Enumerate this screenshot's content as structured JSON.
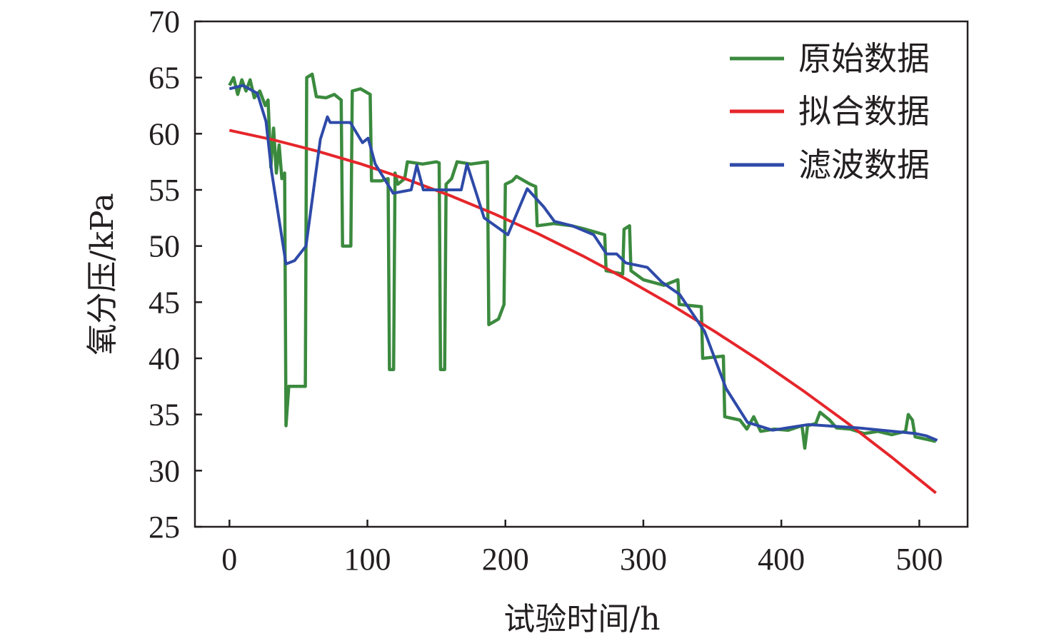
{
  "chart_data": {
    "type": "line",
    "title": "",
    "xlabel": "试验时间/h",
    "ylabel": "氧分压/kPa",
    "xlim": [
      -25,
      535
    ],
    "ylim": [
      25,
      70
    ],
    "xticks": [
      0,
      100,
      200,
      300,
      400,
      500
    ],
    "yticks": [
      25,
      30,
      35,
      40,
      45,
      50,
      55,
      60,
      65,
      70
    ],
    "grid": false,
    "legend_position": "top-right",
    "series": [
      {
        "name": "原始数据",
        "color": "#3b8a3e",
        "points": [
          [
            0,
            64.3
          ],
          [
            3,
            65
          ],
          [
            6,
            63.5
          ],
          [
            9,
            64.8
          ],
          [
            12,
            63.8
          ],
          [
            15,
            64.8
          ],
          [
            18,
            63.2
          ],
          [
            22,
            63.8
          ],
          [
            26,
            62.5
          ],
          [
            28,
            63
          ],
          [
            30,
            57
          ],
          [
            32,
            60.5
          ],
          [
            34,
            56.5
          ],
          [
            36,
            59
          ],
          [
            38,
            56
          ],
          [
            40,
            56.5
          ],
          [
            41,
            34
          ],
          [
            43,
            37.5
          ],
          [
            55,
            37.5
          ],
          [
            56,
            65
          ],
          [
            60,
            65.3
          ],
          [
            63,
            63.3
          ],
          [
            70,
            63.2
          ],
          [
            76,
            63.5
          ],
          [
            81,
            63
          ],
          [
            82,
            50
          ],
          [
            88,
            50
          ],
          [
            89,
            63.8
          ],
          [
            95,
            64
          ],
          [
            102,
            63.5
          ],
          [
            103,
            55.8
          ],
          [
            110,
            55.8
          ],
          [
            115,
            56
          ],
          [
            116,
            39
          ],
          [
            119,
            39
          ],
          [
            120,
            56.5
          ],
          [
            122,
            55.5
          ],
          [
            127,
            56
          ],
          [
            129,
            57.5
          ],
          [
            140,
            57.3
          ],
          [
            150,
            57.5
          ],
          [
            152,
            57.4
          ],
          [
            153,
            39
          ],
          [
            156,
            39
          ],
          [
            157,
            55.5
          ],
          [
            161,
            56
          ],
          [
            165,
            57.5
          ],
          [
            175,
            57.3
          ],
          [
            187,
            57.5
          ],
          [
            188,
            43
          ],
          [
            195,
            43.5
          ],
          [
            199,
            44.8
          ],
          [
            200,
            55.5
          ],
          [
            205,
            55.8
          ],
          [
            208,
            56.2
          ],
          [
            218,
            55.5
          ],
          [
            222,
            55.3
          ],
          [
            223,
            51.8
          ],
          [
            235,
            52
          ],
          [
            248,
            51.8
          ],
          [
            258,
            51.5
          ],
          [
            272,
            51
          ],
          [
            273,
            47.8
          ],
          [
            285,
            47.5
          ],
          [
            286,
            51.5
          ],
          [
            290,
            51.8
          ],
          [
            291,
            47.8
          ],
          [
            300,
            47
          ],
          [
            315,
            46.5
          ],
          [
            325,
            47
          ],
          [
            326,
            44.8
          ],
          [
            342,
            44.6
          ],
          [
            343,
            40
          ],
          [
            358,
            40.2
          ],
          [
            359,
            34.8
          ],
          [
            370,
            34.5
          ],
          [
            375,
            33.7
          ],
          [
            380,
            34.8
          ],
          [
            385,
            33.5
          ],
          [
            395,
            33.7
          ],
          [
            405,
            33.6
          ],
          [
            415,
            34
          ],
          [
            417,
            32
          ],
          [
            419,
            34
          ],
          [
            425,
            34.2
          ],
          [
            428,
            35.2
          ],
          [
            435,
            34.5
          ],
          [
            440,
            33.8
          ],
          [
            450,
            33.7
          ],
          [
            460,
            33.3
          ],
          [
            470,
            33.5
          ],
          [
            480,
            33.2
          ],
          [
            490,
            33.5
          ],
          [
            492,
            35
          ],
          [
            495,
            34.5
          ],
          [
            497,
            33
          ],
          [
            505,
            32.8
          ],
          [
            512,
            32.6
          ]
        ]
      },
      {
        "name": "拟合数据",
        "color": "#e5262b",
        "points": [
          [
            0,
            60.3
          ],
          [
            32,
            59.45
          ],
          [
            64,
            58.44
          ],
          [
            96,
            57.28
          ],
          [
            128,
            55.96
          ],
          [
            160,
            54.49
          ],
          [
            192,
            52.86
          ],
          [
            224,
            51.08
          ],
          [
            256,
            49.13
          ],
          [
            288,
            47.03
          ],
          [
            320,
            44.78
          ],
          [
            352,
            42.37
          ],
          [
            384,
            39.82
          ],
          [
            416,
            37.1
          ],
          [
            448,
            34.23
          ],
          [
            480,
            31.2
          ],
          [
            512,
            28.01
          ]
        ]
      },
      {
        "name": "滤波数据",
        "color": "#2e4aa8",
        "points": [
          [
            0,
            64
          ],
          [
            9.9,
            64.3
          ],
          [
            20.2,
            63.6
          ],
          [
            26.5,
            61.1
          ],
          [
            30.6,
            56.6
          ],
          [
            41,
            48.4
          ],
          [
            47.2,
            48.7
          ],
          [
            55.5,
            50
          ],
          [
            65.9,
            59.5
          ],
          [
            71,
            61.5
          ],
          [
            73,
            61
          ],
          [
            87.6,
            61
          ],
          [
            96.4,
            59.2
          ],
          [
            100.5,
            59.6
          ],
          [
            105.7,
            57.3
          ],
          [
            118.7,
            54.7
          ],
          [
            131.7,
            55
          ],
          [
            135.8,
            57.2
          ],
          [
            140.5,
            55
          ],
          [
            168,
            55
          ],
          [
            172.2,
            57.3
          ],
          [
            184.6,
            52.5
          ],
          [
            201.8,
            51
          ],
          [
            215.8,
            55.1
          ],
          [
            227.7,
            53.5
          ],
          [
            235.5,
            52.2
          ],
          [
            248.4,
            51.8
          ],
          [
            264,
            51
          ],
          [
            273.3,
            49.3
          ],
          [
            280.6,
            49.3
          ],
          [
            287.3,
            48.5
          ],
          [
            302.9,
            48.1
          ],
          [
            313.3,
            46.8
          ],
          [
            326.2,
            45.7
          ],
          [
            344.4,
            42.4
          ],
          [
            360,
            37.3
          ],
          [
            375.5,
            34.3
          ],
          [
            393.7,
            33.6
          ],
          [
            404,
            33.8
          ],
          [
            419.6,
            34.1
          ],
          [
            455.9,
            33.8
          ],
          [
            497.4,
            33.3
          ],
          [
            505.2,
            33.1
          ],
          [
            513,
            32.7
          ]
        ]
      }
    ]
  }
}
